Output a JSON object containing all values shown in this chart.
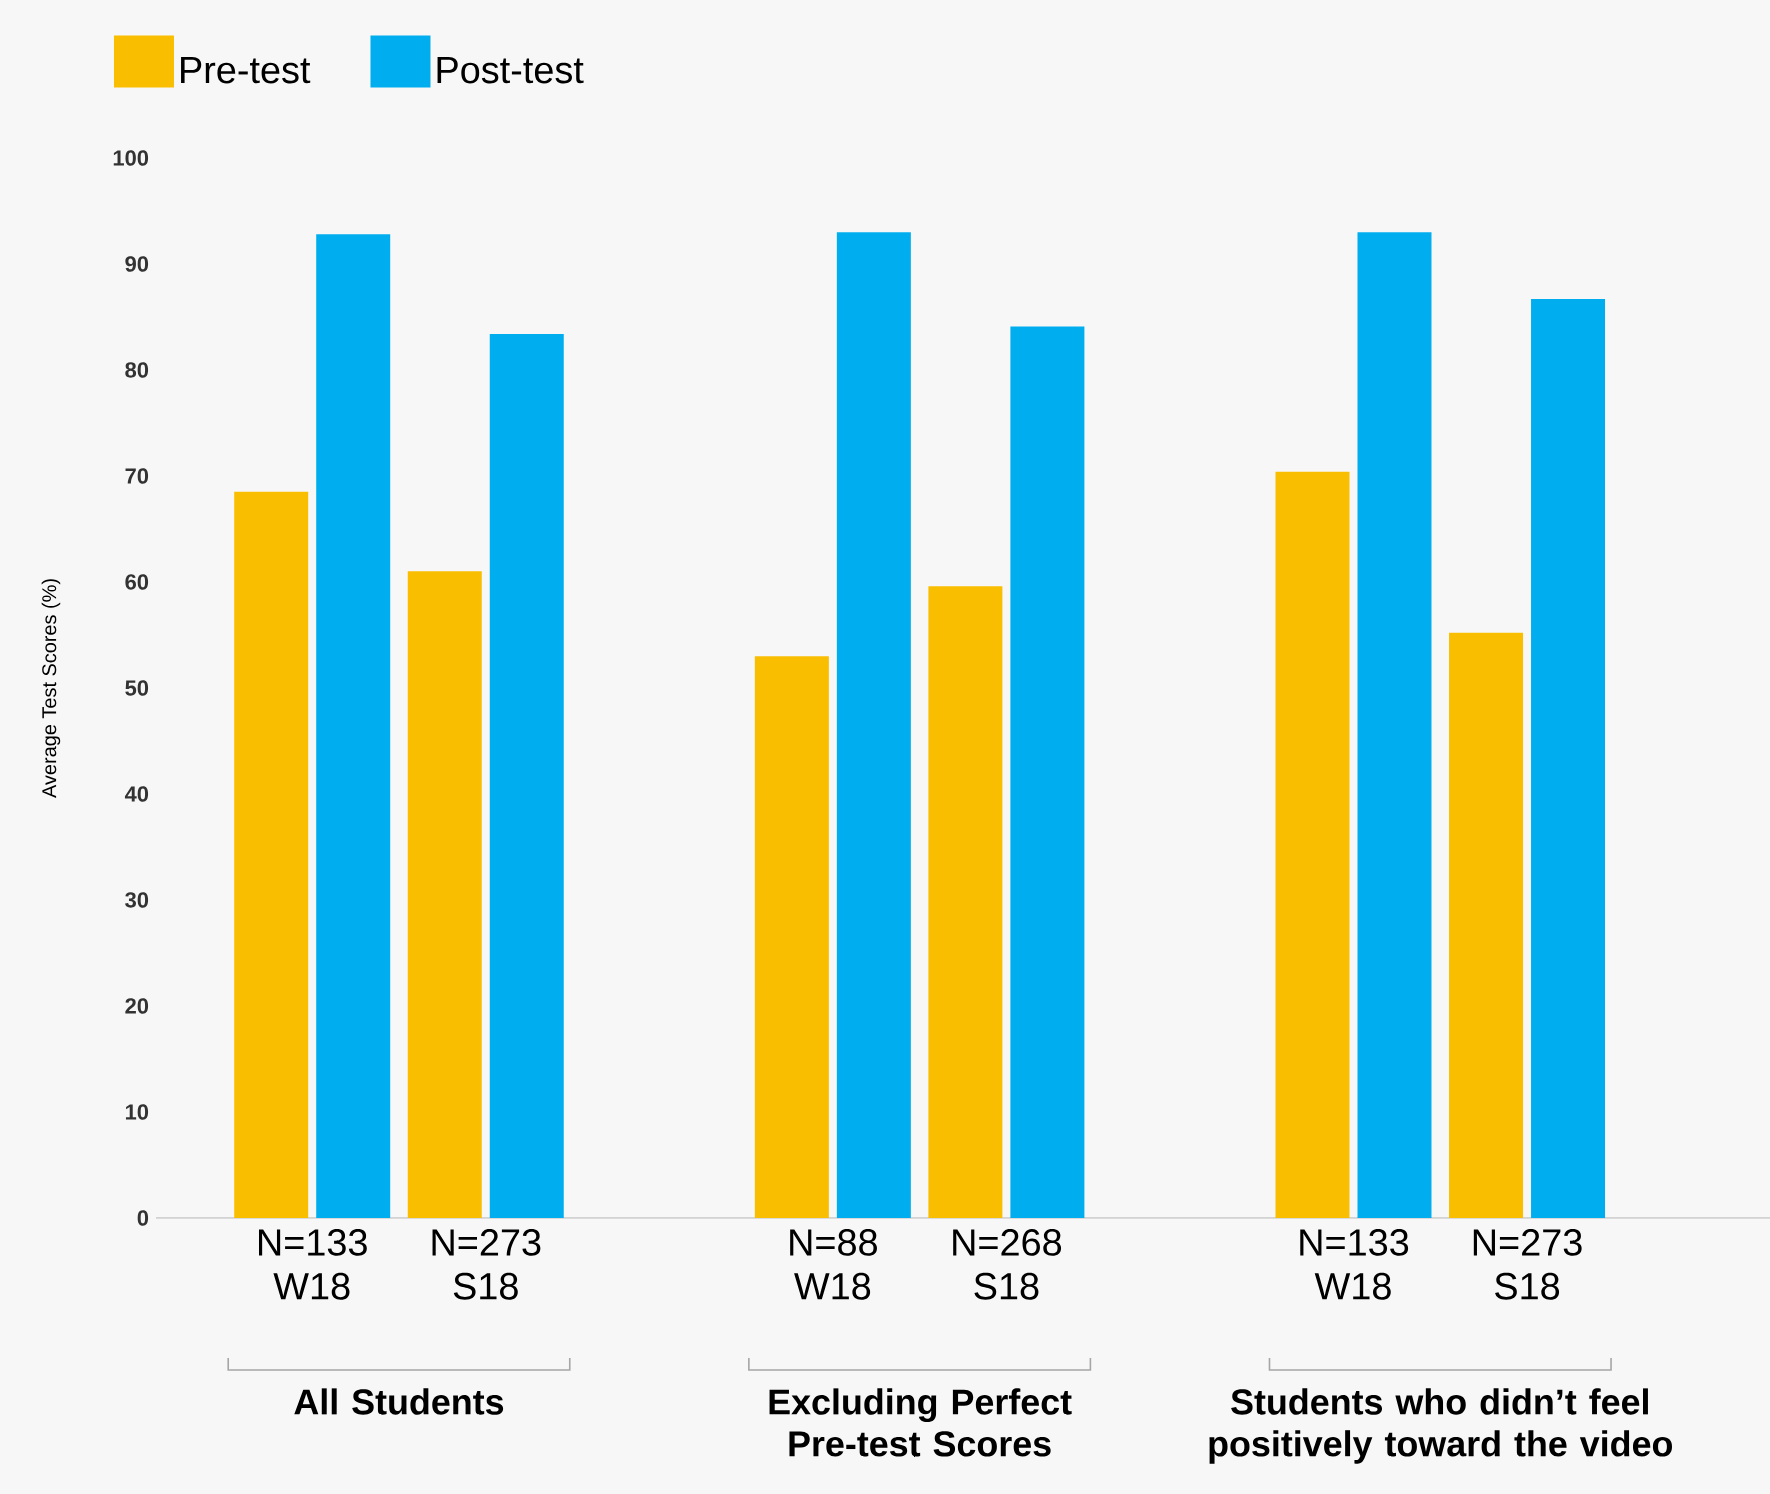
{
  "chart_data": {
    "type": "bar",
    "ylabel": "Average Test Scores (%)",
    "categories": [
      "N=133 W18",
      "N=273 S18",
      "N=88 W18",
      "N=268 S18",
      "N=133 W18",
      "N=273 S18"
    ],
    "series": [
      {
        "name": "Pre-test",
        "color": "#f9be00",
        "values": [
          68.5,
          61.0,
          53.0,
          59.6,
          70.4,
          55.2
        ]
      },
      {
        "name": "Post-test",
        "color": "#00aeef",
        "values": [
          92.8,
          83.4,
          93.0,
          84.1,
          93.0,
          86.7
        ]
      }
    ],
    "ylim": [
      0,
      100
    ],
    "yticks": [
      0,
      10,
      20,
      30,
      40,
      50,
      60,
      70,
      80,
      90,
      100
    ],
    "annotations": [
      "All Students",
      "Excluding Perfect Pre-test Scores",
      "Students who didn’t feel positively toward the video"
    ],
    "legend": "top left",
    "grid": false
  }
}
